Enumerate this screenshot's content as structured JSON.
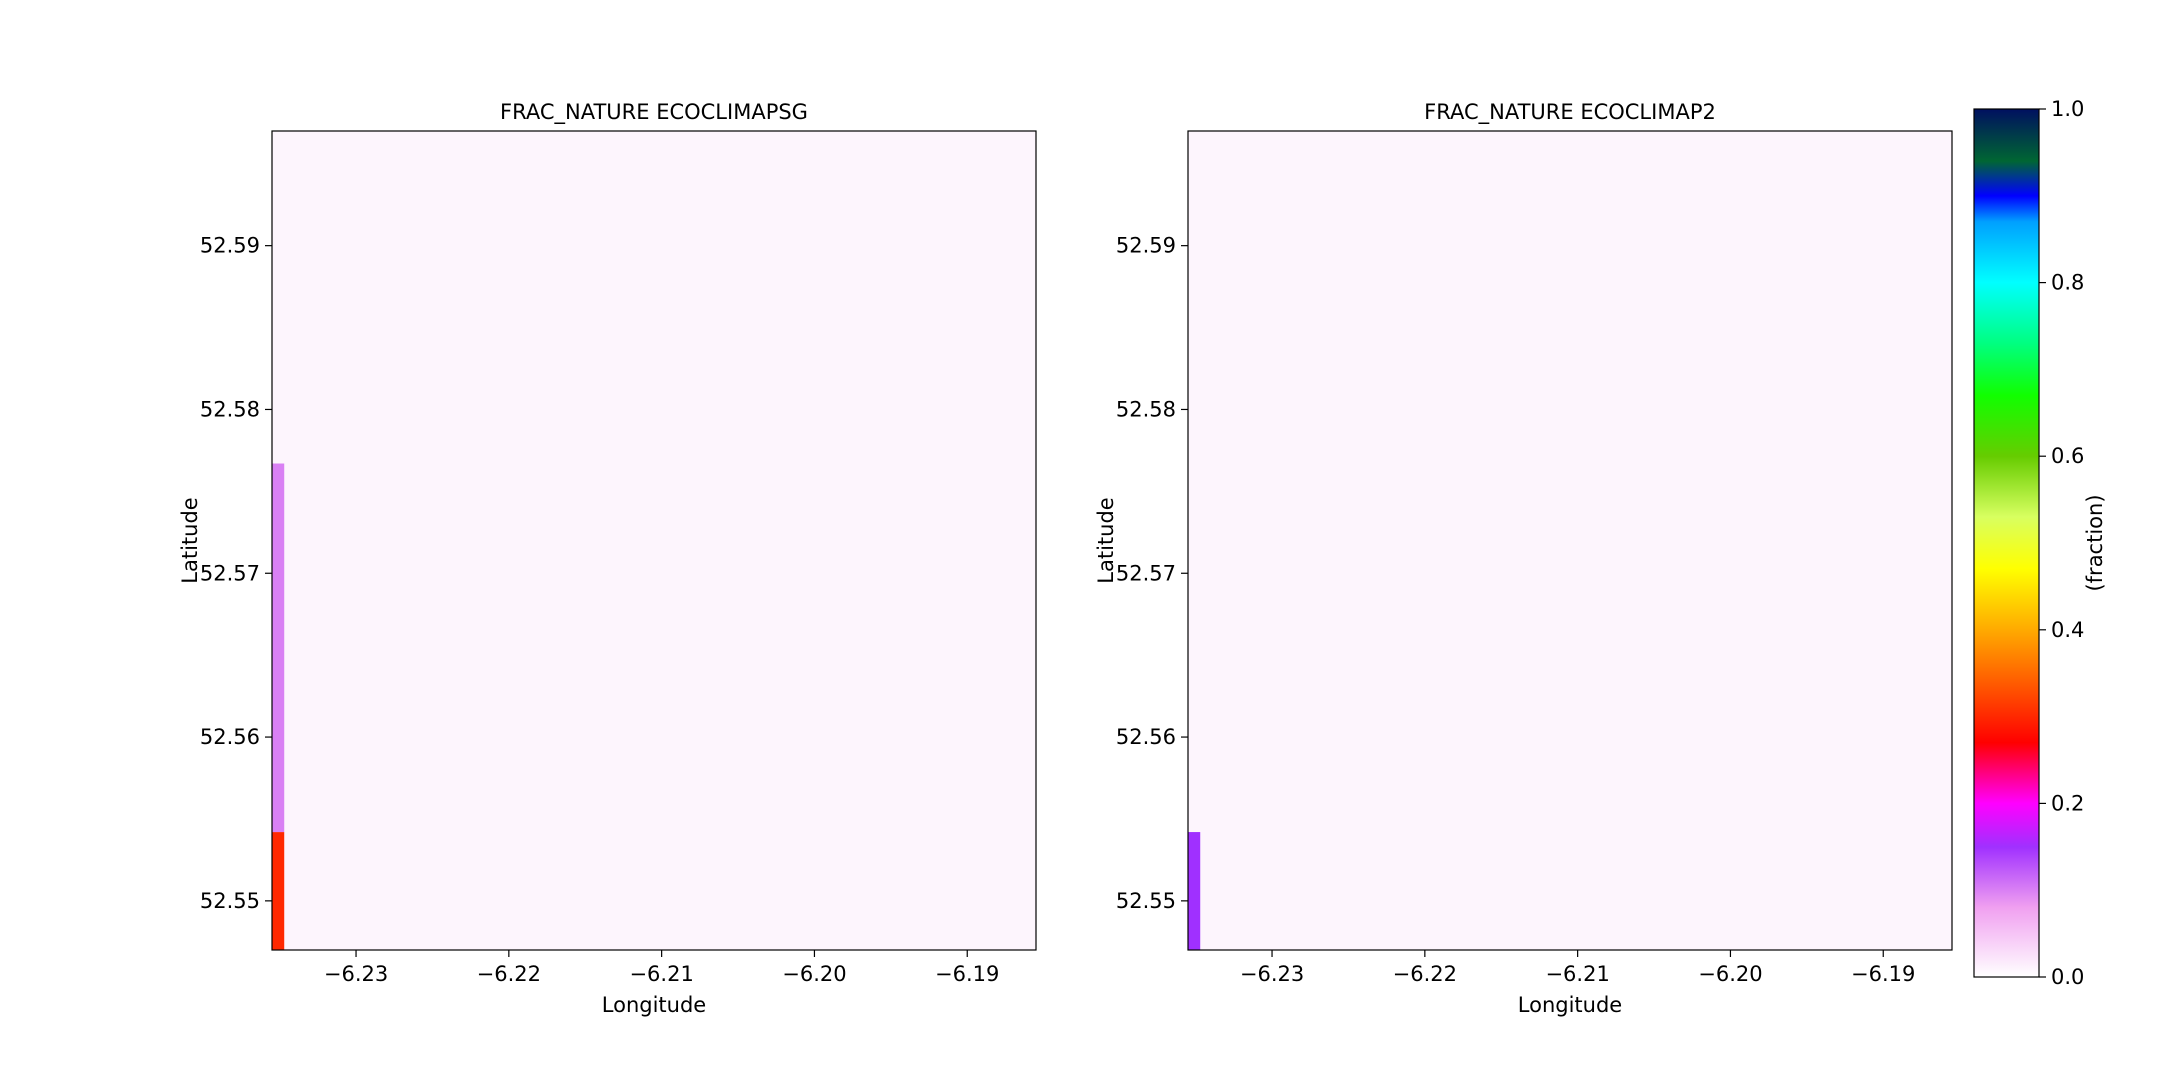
{
  "chart_data": [
    {
      "type": "heatmap",
      "title": "FRAC_NATURE ECOCLIMAPSG",
      "xlabel": "Longitude",
      "ylabel": "Latitude",
      "xlim": [
        -6.2355,
        -6.1855
      ],
      "ylim": [
        52.547,
        52.597
      ],
      "xticks": [
        -6.23,
        -6.22,
        -6.21,
        -6.2,
        -6.19
      ],
      "xtick_labels": [
        "−6.23",
        "−6.22",
        "−6.21",
        "−6.20",
        "−6.19"
      ],
      "yticks": [
        52.55,
        52.56,
        52.57,
        52.58,
        52.59
      ],
      "ytick_labels": [
        "52.55",
        "52.56",
        "52.57",
        "52.58",
        "52.59"
      ],
      "background_value": 0.0,
      "cells": [
        {
          "x0": -6.2355,
          "x1": -6.2347,
          "y0": 52.547,
          "y1": 52.5542,
          "value": 0.3
        },
        {
          "x0": -6.2355,
          "x1": -6.2347,
          "y0": 52.5542,
          "y1": 52.5767,
          "value": 0.1
        }
      ],
      "grid": false
    },
    {
      "type": "heatmap",
      "title": "FRAC_NATURE ECOCLIMAP2",
      "xlabel": "Longitude",
      "ylabel": "Latitude",
      "xlim": [
        -6.2355,
        -6.1855
      ],
      "ylim": [
        52.547,
        52.597
      ],
      "xticks": [
        -6.23,
        -6.22,
        -6.21,
        -6.2,
        -6.19
      ],
      "xtick_labels": [
        "−6.23",
        "−6.22",
        "−6.21",
        "−6.20",
        "−6.19"
      ],
      "yticks": [
        52.55,
        52.56,
        52.57,
        52.58,
        52.59
      ],
      "ytick_labels": [
        "52.55",
        "52.56",
        "52.57",
        "52.58",
        "52.59"
      ],
      "background_value": 0.0,
      "cells": [
        {
          "x0": -6.2355,
          "x1": -6.2347,
          "y0": 52.547,
          "y1": 52.5542,
          "value": 0.15
        }
      ],
      "grid": false
    }
  ],
  "colorbar": {
    "label": "(fraction)",
    "range": [
      0.0,
      1.0
    ],
    "ticks": [
      0.0,
      0.2,
      0.4,
      0.6,
      0.8,
      1.0
    ],
    "tick_labels": [
      "0.0",
      "0.2",
      "0.4",
      "0.6",
      "0.8",
      "1.0"
    ],
    "colormap": [
      {
        "v": 0.0,
        "c": "#ffffff"
      },
      {
        "v": 0.08,
        "c": "#f0a0f0"
      },
      {
        "v": 0.15,
        "c": "#a030ff"
      },
      {
        "v": 0.2,
        "c": "#ff00ff"
      },
      {
        "v": 0.27,
        "c": "#ff0000"
      },
      {
        "v": 0.33,
        "c": "#ff5000"
      },
      {
        "v": 0.4,
        "c": "#ffaa00"
      },
      {
        "v": 0.47,
        "c": "#ffff00"
      },
      {
        "v": 0.53,
        "c": "#d8ff60"
      },
      {
        "v": 0.6,
        "c": "#66cc00"
      },
      {
        "v": 0.67,
        "c": "#11ff00"
      },
      {
        "v": 0.73,
        "c": "#00ff80"
      },
      {
        "v": 0.8,
        "c": "#00ffff"
      },
      {
        "v": 0.87,
        "c": "#00a0ff"
      },
      {
        "v": 0.9,
        "c": "#0000ff"
      },
      {
        "v": 0.94,
        "c": "#006633"
      },
      {
        "v": 1.0,
        "c": "#001060"
      }
    ]
  }
}
